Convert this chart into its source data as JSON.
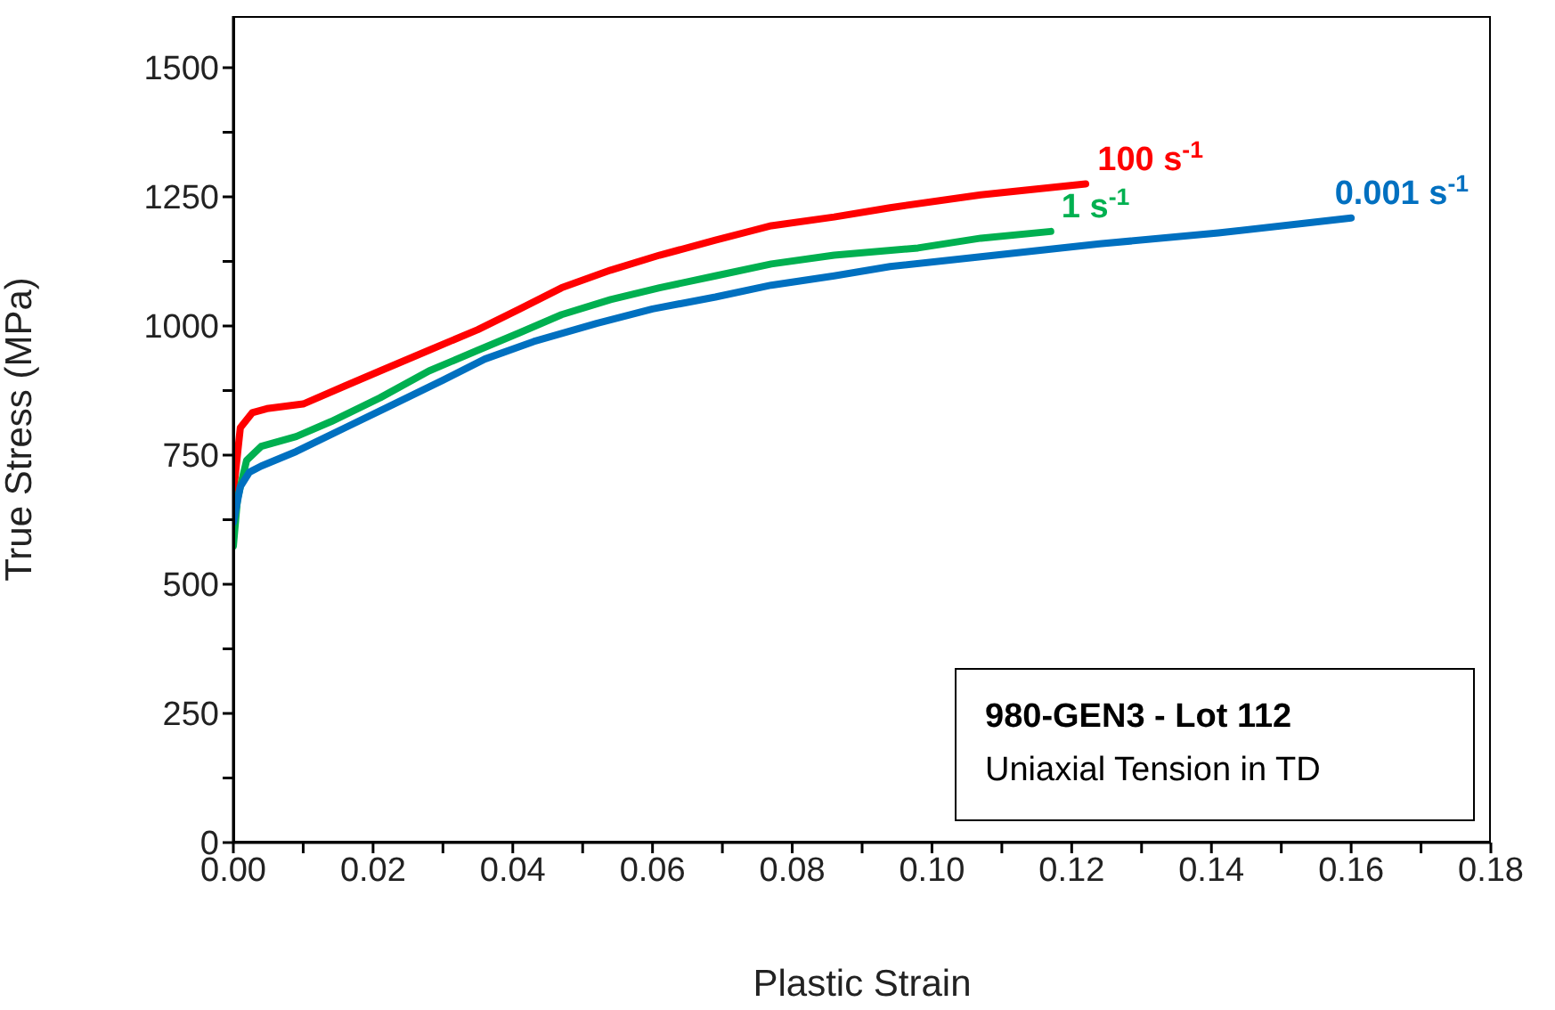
{
  "chart_data": {
    "type": "line",
    "xlabel": "Plastic Strain",
    "ylabel": "True Stress (MPa)",
    "xlim": [
      0,
      0.18
    ],
    "xticks": [
      {
        "value": 0,
        "label": "0.00"
      },
      {
        "value": 0.01,
        "label": null
      },
      {
        "value": 0.02,
        "label": "0.02"
      },
      {
        "value": 0.03,
        "label": null
      },
      {
        "value": 0.04,
        "label": "0.04"
      },
      {
        "value": 0.05,
        "label": null
      },
      {
        "value": 0.06,
        "label": "0.06"
      },
      {
        "value": 0.07,
        "label": null
      },
      {
        "value": 0.08,
        "label": "0.08"
      },
      {
        "value": 0.09,
        "label": null
      },
      {
        "value": 0.1,
        "label": "0.10"
      },
      {
        "value": 0.11,
        "label": null
      },
      {
        "value": 0.12,
        "label": "0.12"
      },
      {
        "value": 0.13,
        "label": null
      },
      {
        "value": 0.14,
        "label": "0.14"
      },
      {
        "value": 0.15,
        "label": null
      },
      {
        "value": 0.16,
        "label": "0.16"
      },
      {
        "value": 0.17,
        "label": null
      },
      {
        "value": 0.18,
        "label": "0.18"
      }
    ],
    "ylim": [
      0,
      1600
    ],
    "yticks": [
      0,
      {
        "value": 125,
        "label": null
      },
      250,
      {
        "value": 375,
        "label": null
      },
      500,
      {
        "value": 625,
        "label": null
      },
      750,
      {
        "value": 875,
        "label": null
      },
      1000,
      {
        "value": 1125,
        "label": null
      },
      1250,
      {
        "value": 1375,
        "label": null
      },
      1500
    ],
    "grid": false,
    "legend": false,
    "marker": "none",
    "line_style": "solid",
    "annotations": [
      "980-GEN3 - Lot 112",
      "Uniaxial Tension in TD"
    ],
    "series": [
      {
        "name": "100 s$^{-1}$",
        "color": "#ff0000",
        "x": [
          0,
          0.001,
          0.0027,
          0.0048,
          0.01,
          0.016,
          0.021,
          0.028,
          0.035,
          0.041,
          0.047,
          0.054,
          0.061,
          0.069,
          0.077,
          0.086,
          0.094,
          0.107,
          0.122
        ],
        "values": [
          677,
          803,
          832,
          840,
          849,
          884,
          913,
          953,
          993,
          1033,
          1074,
          1108,
          1137,
          1166,
          1194,
          1211,
          1229,
          1254,
          1275
        ]
      },
      {
        "name": "1 s$^{-1}$",
        "color": "#00b050",
        "x": [
          0,
          0.0006,
          0.0019,
          0.004,
          0.009,
          0.014,
          0.021,
          0.028,
          0.035,
          0.041,
          0.047,
          0.054,
          0.061,
          0.069,
          0.077,
          0.086,
          0.098,
          0.107,
          0.117
        ],
        "values": [
          574,
          666,
          740,
          767,
          786,
          815,
          861,
          913,
          953,
          987,
          1022,
          1051,
          1074,
          1097,
          1120,
          1137,
          1151,
          1170,
          1183
        ]
      },
      {
        "name": "0.001 s$^{-1}$",
        "color": "#0070c0",
        "x": [
          0,
          0.001,
          0.0023,
          0.004,
          0.009,
          0.016,
          0.023,
          0.03,
          0.036,
          0.043,
          0.052,
          0.06,
          0.069,
          0.077,
          0.086,
          0.094,
          0.107,
          0.124,
          0.141,
          0.16
        ],
        "values": [
          620,
          689,
          717,
          729,
          757,
          803,
          849,
          895,
          936,
          970,
          1005,
          1033,
          1056,
          1079,
          1097,
          1115,
          1134,
          1159,
          1180,
          1209
        ]
      }
    ]
  }
}
